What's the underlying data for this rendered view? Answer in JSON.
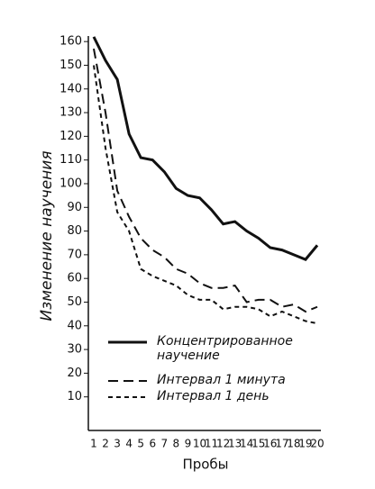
{
  "chart_data": {
    "type": "line",
    "x_label": "Пробы",
    "y_label": "Изменение научения",
    "x": [
      1,
      2,
      3,
      4,
      5,
      6,
      7,
      8,
      9,
      10,
      11,
      12,
      13,
      14,
      15,
      16,
      17,
      18,
      19,
      20
    ],
    "xlim": [
      1,
      20
    ],
    "ylim": [
      0,
      165
    ],
    "yticks": [
      10,
      20,
      30,
      40,
      50,
      60,
      70,
      80,
      90,
      100,
      110,
      120,
      130,
      140,
      150,
      160
    ],
    "series": [
      {
        "name": "Концентрированное научение",
        "color": "#111111",
        "dash": "solid",
        "values": [
          162,
          152,
          144,
          121,
          111,
          110,
          105,
          98,
          95,
          94,
          89,
          83,
          84,
          80,
          77,
          73,
          72,
          70,
          68,
          74
        ]
      },
      {
        "name": "Интервал 1 минута",
        "color": "#111111",
        "dash": "long",
        "values": [
          157,
          130,
          97,
          86,
          77,
          72,
          69,
          64,
          62,
          58,
          56,
          56,
          57,
          50,
          51,
          51,
          48,
          49,
          46,
          48
        ]
      },
      {
        "name": "Интервал 1 день",
        "color": "#111111",
        "dash": "short",
        "values": [
          150,
          115,
          88,
          80,
          64,
          61,
          59,
          57,
          53,
          51,
          51,
          47,
          48,
          48,
          47,
          44,
          46,
          44,
          42,
          41
        ]
      }
    ]
  }
}
